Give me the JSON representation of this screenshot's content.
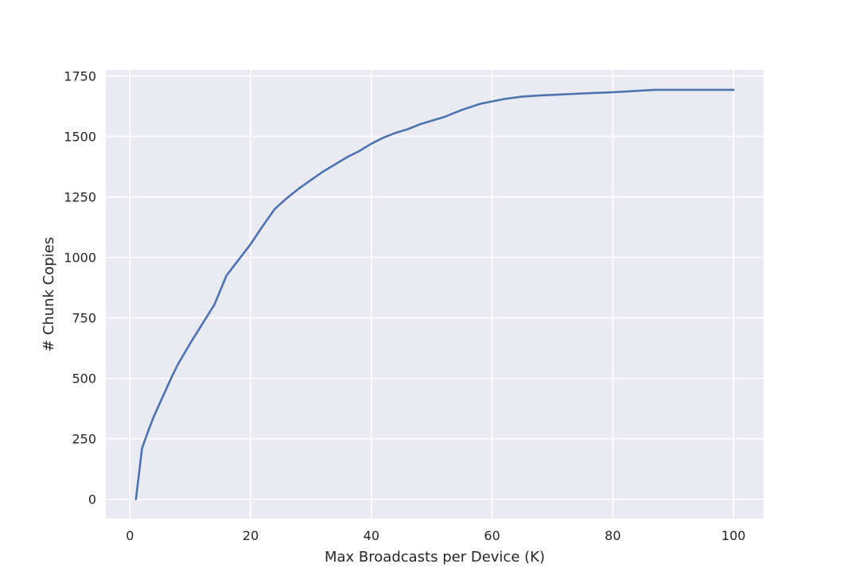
{
  "chart_data": {
    "type": "line",
    "title": "",
    "xlabel": "Max Broadcasts per Device (K)",
    "ylabel": "# Chunk Copies",
    "xlim": [
      -4,
      105
    ],
    "ylim": [
      -80,
      1775
    ],
    "xticks": [
      0,
      20,
      40,
      60,
      80,
      100
    ],
    "yticks": [
      0,
      250,
      500,
      750,
      1000,
      1250,
      1500,
      1750
    ],
    "grid": true,
    "background": "#eaeaf2",
    "grid_color": "#ffffff",
    "series": [
      {
        "color": "#4c72b0",
        "x": [
          1,
          2,
          3,
          4,
          5,
          6,
          7,
          8,
          10,
          12,
          14,
          16,
          18,
          20,
          22,
          24,
          26,
          28,
          30,
          32,
          34,
          36,
          38,
          40,
          42,
          44,
          46,
          48,
          50,
          52,
          55,
          58,
          60,
          62,
          65,
          68,
          70,
          75,
          80,
          85,
          87,
          90,
          95,
          100
        ],
        "y": [
          0,
          210,
          280,
          345,
          400,
          455,
          510,
          560,
          645,
          725,
          805,
          925,
          990,
          1055,
          1130,
          1200,
          1245,
          1285,
          1320,
          1355,
          1385,
          1415,
          1440,
          1470,
          1495,
          1515,
          1530,
          1550,
          1565,
          1580,
          1610,
          1635,
          1645,
          1655,
          1665,
          1670,
          1672,
          1678,
          1683,
          1690,
          1693,
          1693,
          1693,
          1693
        ]
      }
    ]
  }
}
